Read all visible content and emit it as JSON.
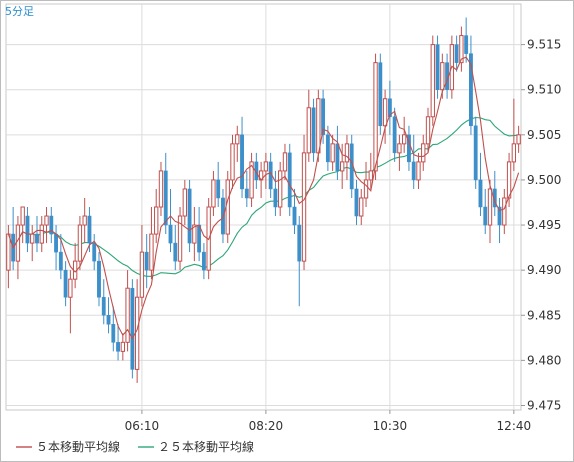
{
  "chart_data": {
    "type": "candlestick",
    "title": "5分足",
    "ylim": [
      9.4745,
      9.5195
    ],
    "y_ticks": [
      "9.515",
      "9.510",
      "9.505",
      "9.500",
      "9.495",
      "9.490",
      "9.485",
      "9.480",
      "9.475"
    ],
    "x_ticks": [
      "06:10",
      "08:20",
      "10:30",
      "12:40"
    ],
    "x_tick_candle_index": [
      28,
      54,
      80,
      106
    ],
    "grid": true,
    "legend": "bottom",
    "colors": {
      "up": "#c0504d",
      "down": "#3d8fc9",
      "ma5": "#c0504d",
      "ma25": "#2ea777"
    },
    "series_labels": {
      "ma5": "５本移動平均線",
      "ma25": "２５本移動平均線"
    },
    "candles": [
      [
        9.49,
        9.495,
        9.488,
        9.494
      ],
      [
        9.494,
        9.497,
        9.49,
        9.491
      ],
      [
        9.491,
        9.496,
        9.489,
        9.495
      ],
      [
        9.495,
        9.497,
        9.493,
        9.497
      ],
      [
        9.496,
        9.497,
        9.492,
        9.493
      ],
      [
        9.493,
        9.495,
        9.491,
        9.494
      ],
      [
        9.494,
        9.496,
        9.492,
        9.493
      ],
      [
        9.493,
        9.496,
        9.492,
        9.495
      ],
      [
        9.495,
        9.497,
        9.493,
        9.496
      ],
      [
        9.496,
        9.497,
        9.493,
        9.494
      ],
      [
        9.494,
        9.495,
        9.49,
        9.492
      ],
      [
        9.492,
        9.494,
        9.489,
        9.49
      ],
      [
        9.49,
        9.491,
        9.486,
        9.487
      ],
      [
        9.487,
        9.49,
        9.483,
        9.489
      ],
      [
        9.489,
        9.493,
        9.488,
        9.491
      ],
      [
        9.491,
        9.496,
        9.49,
        9.495
      ],
      [
        9.495,
        9.498,
        9.493,
        9.496
      ],
      [
        9.496,
        9.497,
        9.492,
        9.493
      ],
      [
        9.493,
        9.494,
        9.49,
        9.491
      ],
      [
        9.491,
        9.492,
        9.486,
        9.487
      ],
      [
        9.487,
        9.489,
        9.484,
        9.485
      ],
      [
        9.485,
        9.487,
        9.483,
        9.484
      ],
      [
        9.484,
        9.486,
        9.481,
        9.482
      ],
      [
        9.482,
        9.484,
        9.48,
        9.481
      ],
      [
        9.481,
        9.483,
        9.48,
        9.482
      ],
      [
        9.482,
        9.49,
        9.481,
        9.488
      ],
      [
        9.488,
        9.489,
        9.478,
        9.479
      ],
      [
        9.479,
        9.489,
        9.4775,
        9.487
      ],
      [
        9.487,
        9.495,
        9.486,
        9.492
      ],
      [
        9.492,
        9.494,
        9.488,
        9.49
      ],
      [
        9.49,
        9.497,
        9.489,
        9.494
      ],
      [
        9.494,
        9.499,
        9.493,
        9.497
      ],
      [
        9.497,
        9.502,
        9.496,
        9.501
      ],
      [
        9.501,
        9.503,
        9.494,
        9.495
      ],
      [
        9.495,
        9.499,
        9.492,
        9.493
      ],
      [
        9.493,
        9.495,
        9.49,
        9.491
      ],
      [
        9.491,
        9.497,
        9.49,
        9.496
      ],
      [
        9.496,
        9.5,
        9.495,
        9.499
      ],
      [
        9.499,
        9.5,
        9.492,
        9.493
      ],
      [
        9.493,
        9.497,
        9.491,
        9.495
      ],
      [
        9.495,
        9.497,
        9.491,
        9.492
      ],
      [
        9.492,
        9.493,
        9.489,
        9.49
      ],
      [
        9.49,
        9.498,
        9.489,
        9.497
      ],
      [
        9.497,
        9.501,
        9.496,
        9.5
      ],
      [
        9.5,
        9.502,
        9.497,
        9.498
      ],
      [
        9.498,
        9.499,
        9.493,
        9.494
      ],
      [
        9.494,
        9.501,
        9.493,
        9.5
      ],
      [
        9.5,
        9.505,
        9.499,
        9.504
      ],
      [
        9.504,
        9.506,
        9.502,
        9.505
      ],
      [
        9.505,
        9.507,
        9.498,
        9.499
      ],
      [
        9.499,
        9.501,
        9.497,
        9.498
      ],
      [
        9.498,
        9.503,
        9.497,
        9.502
      ],
      [
        9.502,
        9.503,
        9.499,
        9.5
      ],
      [
        9.5,
        9.502,
        9.498,
        9.501
      ],
      [
        9.501,
        9.503,
        9.499,
        9.502
      ],
      [
        9.502,
        9.503,
        9.498,
        9.499
      ],
      [
        9.499,
        9.501,
        9.496,
        9.497
      ],
      [
        9.497,
        9.502,
        9.496,
        9.501
      ],
      [
        9.501,
        9.504,
        9.5,
        9.503
      ],
      [
        9.503,
        9.504,
        9.496,
        9.497
      ],
      [
        9.497,
        9.499,
        9.494,
        9.495
      ],
      [
        9.495,
        9.496,
        9.486,
        9.491
      ],
      [
        9.491,
        9.505,
        9.49,
        9.503
      ],
      [
        9.503,
        9.51,
        9.502,
        9.508
      ],
      [
        9.508,
        9.509,
        9.502,
        9.503
      ],
      [
        9.503,
        9.51,
        9.502,
        9.509
      ],
      [
        9.509,
        9.51,
        9.504,
        9.505
      ],
      [
        9.505,
        9.506,
        9.501,
        9.502
      ],
      [
        9.502,
        9.505,
        9.501,
        9.504
      ],
      [
        9.504,
        9.506,
        9.5,
        9.501
      ],
      [
        9.501,
        9.504,
        9.499,
        9.502
      ],
      [
        9.502,
        9.505,
        9.5,
        9.504
      ],
      [
        9.504,
        9.505,
        9.498,
        9.499
      ],
      [
        9.499,
        9.5,
        9.495,
        9.496
      ],
      [
        9.496,
        9.499,
        9.495,
        9.498
      ],
      [
        9.498,
        9.502,
        9.497,
        9.5
      ],
      [
        9.5,
        9.503,
        9.499,
        9.501
      ],
      [
        9.501,
        9.514,
        9.5,
        9.513
      ],
      [
        9.513,
        9.514,
        9.505,
        9.506
      ],
      [
        9.506,
        9.51,
        9.504,
        9.509
      ],
      [
        9.509,
        9.511,
        9.505,
        9.507
      ],
      [
        9.507,
        9.508,
        9.502,
        9.503
      ],
      [
        9.503,
        9.505,
        9.501,
        9.504
      ],
      [
        9.504,
        9.507,
        9.503,
        9.505
      ],
      [
        9.505,
        9.506,
        9.501,
        9.502
      ],
      [
        9.502,
        9.505,
        9.499,
        9.5
      ],
      [
        9.5,
        9.503,
        9.499,
        9.502
      ],
      [
        9.502,
        9.505,
        9.501,
        9.504
      ],
      [
        9.504,
        9.508,
        9.503,
        9.507
      ],
      [
        9.507,
        9.516,
        9.506,
        9.515
      ],
      [
        9.515,
        9.516,
        9.509,
        9.51
      ],
      [
        9.51,
        9.514,
        9.509,
        9.513
      ],
      [
        9.513,
        9.514,
        9.509,
        9.51
      ],
      [
        9.51,
        9.516,
        9.509,
        9.515
      ],
      [
        9.515,
        9.516,
        9.512,
        9.513
      ],
      [
        9.513,
        9.517,
        9.512,
        9.516
      ],
      [
        9.516,
        9.518,
        9.513,
        9.514
      ],
      [
        9.514,
        9.516,
        9.505,
        9.506
      ],
      [
        9.506,
        9.507,
        9.499,
        9.5
      ],
      [
        9.5,
        9.503,
        9.496,
        9.497
      ],
      [
        9.497,
        9.499,
        9.494,
        9.495
      ],
      [
        9.495,
        9.5,
        9.493,
        9.499
      ],
      [
        9.499,
        9.501,
        9.496,
        9.497
      ],
      [
        9.497,
        9.498,
        9.493,
        9.495
      ],
      [
        9.495,
        9.499,
        9.494,
        9.498
      ],
      [
        9.498,
        9.503,
        9.497,
        9.502
      ],
      [
        9.502,
        9.509,
        9.501,
        9.504
      ],
      [
        9.504,
        9.506,
        9.503,
        9.505
      ]
    ]
  }
}
